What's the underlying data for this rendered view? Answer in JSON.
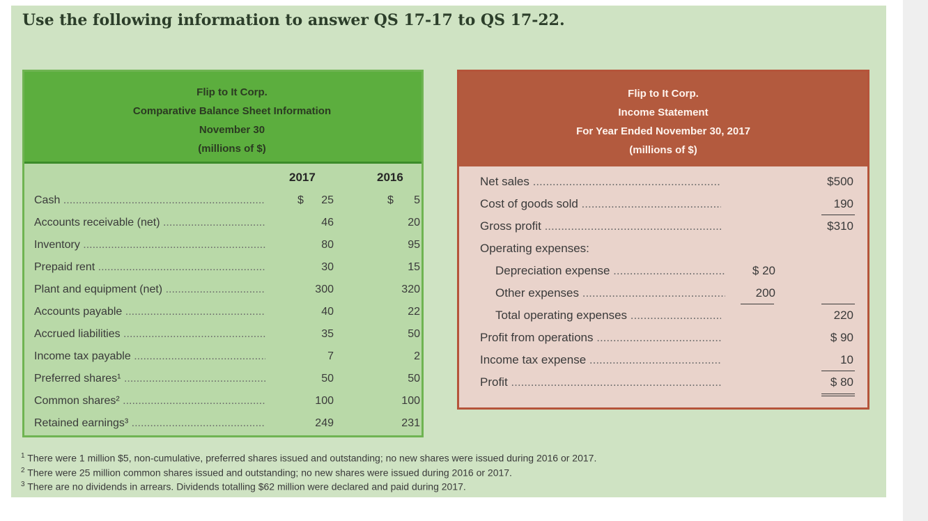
{
  "heading": "Use the following information to answer QS 17-17 to QS 17-22.",
  "balance_sheet": {
    "title_lines": [
      "Flip to It Corp.",
      "Comparative Balance Sheet Information",
      "November 30",
      "(millions of $)"
    ],
    "years": [
      "2017",
      "2016"
    ],
    "currency_symbol": "$",
    "rows": [
      {
        "label": "Cash",
        "v2017": "25",
        "v2016": "5"
      },
      {
        "label": "Accounts receivable (net)",
        "v2017": "46",
        "v2016": "20"
      },
      {
        "label": "Inventory",
        "v2017": "80",
        "v2016": "95"
      },
      {
        "label": "Prepaid rent",
        "v2017": "30",
        "v2016": "15"
      },
      {
        "label": "Plant and equipment (net)",
        "v2017": "300",
        "v2016": "320"
      },
      {
        "label": "Accounts payable",
        "v2017": "40",
        "v2016": "22"
      },
      {
        "label": "Accrued liabilities",
        "v2017": "35",
        "v2016": "50"
      },
      {
        "label": "Income tax payable",
        "v2017": "7",
        "v2016": "2"
      },
      {
        "label": "Preferred shares¹",
        "v2017": "50",
        "v2016": "50"
      },
      {
        "label": "Common shares²",
        "v2017": "100",
        "v2016": "100"
      },
      {
        "label": "Retained earnings³",
        "v2017": "249",
        "v2016": "231"
      }
    ]
  },
  "income_statement": {
    "title_lines": [
      "Flip to It Corp.",
      "Income Statement",
      "For Year Ended November 30, 2017",
      "(millions of $)"
    ],
    "rows": [
      {
        "label": "Net sales",
        "mid": "",
        "right": "$500"
      },
      {
        "label": "Cost of goods sold",
        "mid": "",
        "right": "190"
      },
      {
        "label": "Gross profit",
        "mid": "",
        "right": "$310"
      },
      {
        "label": "Operating expenses:",
        "mid": "",
        "right": ""
      },
      {
        "label": "Depreciation expense",
        "mid": "$ 20",
        "right": ""
      },
      {
        "label": "Other expenses",
        "mid": "200",
        "right": ""
      },
      {
        "label": "Total operating expenses",
        "mid": "",
        "right": "220"
      },
      {
        "label": "Profit from operations",
        "mid": "",
        "right": "$ 90"
      },
      {
        "label": "Income tax expense",
        "mid": "",
        "right": "10"
      },
      {
        "label": "Profit",
        "mid": "",
        "right": "$ 80"
      }
    ]
  },
  "footnotes": [
    {
      "mark": "1",
      "text": "There were 1 million $5, non-cumulative, preferred shares issued and outstanding; no new shares were issued during 2016 or 2017."
    },
    {
      "mark": "2",
      "text": "There were 25 million common shares issued and outstanding; no new shares were issued during 2016 or 2017."
    },
    {
      "mark": "3",
      "text": "There are no dividends in arrears. Dividends totalling $62 million were declared and paid during 2017."
    }
  ]
}
